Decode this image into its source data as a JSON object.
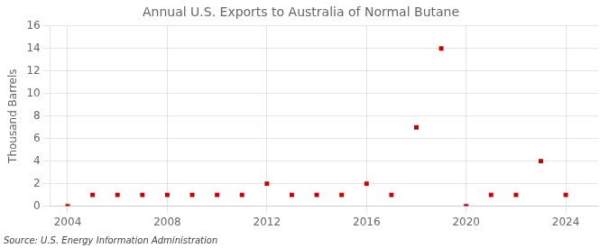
{
  "chart_data": {
    "type": "scatter",
    "title": "Annual U.S. Exports to Australia of Normal Butane",
    "ylabel": "Thousand Barrels",
    "annotations": [
      "Source: U.S. Energy Information Administration"
    ],
    "x": [
      2004,
      2005,
      2006,
      2007,
      2008,
      2009,
      2010,
      2011,
      2012,
      2013,
      2014,
      2015,
      2016,
      2017,
      2018,
      2019,
      2020,
      2021,
      2022,
      2023,
      2024
    ],
    "values": [
      0,
      1,
      1,
      1,
      1,
      1,
      1,
      1,
      2,
      1,
      1,
      1,
      2,
      1,
      7,
      14,
      0,
      1,
      1,
      4,
      1
    ],
    "color": "#cc0000",
    "marker": "square",
    "xlim": [
      2003.3,
      2025.3
    ],
    "xticks": [
      2004,
      2008,
      2012,
      2016,
      2020,
      2024
    ],
    "ylim": [
      0,
      16
    ],
    "yticks": [
      0,
      2,
      4,
      6,
      8,
      10,
      12,
      14,
      16
    ],
    "grid": true
  }
}
